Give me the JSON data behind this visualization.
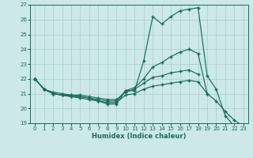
{
  "xlabel": "Humidex (Indice chaleur)",
  "background_color": "#cce8e8",
  "grid_color": "#aacccc",
  "line_color": "#1a6b5a",
  "xlim": [
    -0.5,
    23.5
  ],
  "ylim": [
    19,
    27
  ],
  "yticks": [
    19,
    20,
    21,
    22,
    23,
    24,
    25,
    26,
    27
  ],
  "xticks": [
    0,
    1,
    2,
    3,
    4,
    5,
    6,
    7,
    8,
    9,
    10,
    11,
    12,
    13,
    14,
    15,
    16,
    17,
    18,
    19,
    20,
    21,
    22,
    23
  ],
  "series": {
    "line1_y": [
      22.0,
      21.3,
      21.0,
      20.9,
      20.9,
      20.8,
      20.7,
      20.5,
      20.3,
      20.3,
      21.2,
      21.2,
      23.2,
      26.2,
      25.7,
      26.2,
      26.6,
      26.7,
      26.8,
      22.2,
      21.3,
      19.5,
      18.8,
      null
    ],
    "line2_y": [
      22.0,
      21.3,
      21.0,
      20.9,
      20.8,
      20.8,
      20.7,
      20.6,
      20.5,
      20.5,
      21.2,
      21.4,
      22.0,
      22.8,
      23.1,
      23.5,
      23.8,
      24.0,
      23.7,
      21.0,
      null,
      null,
      null,
      null
    ],
    "line3_y": [
      22.0,
      21.3,
      21.1,
      21.0,
      20.9,
      20.9,
      20.8,
      20.7,
      20.6,
      20.6,
      21.1,
      21.3,
      21.7,
      22.1,
      22.2,
      22.4,
      22.5,
      22.6,
      22.3,
      null,
      null,
      null,
      null,
      null
    ],
    "line4_y": [
      22.0,
      21.3,
      21.0,
      20.9,
      20.8,
      20.7,
      20.6,
      20.5,
      20.4,
      20.4,
      20.9,
      21.0,
      21.3,
      21.5,
      21.6,
      21.7,
      21.8,
      21.9,
      21.8,
      21.0,
      20.5,
      19.8,
      19.2,
      18.8
    ]
  }
}
